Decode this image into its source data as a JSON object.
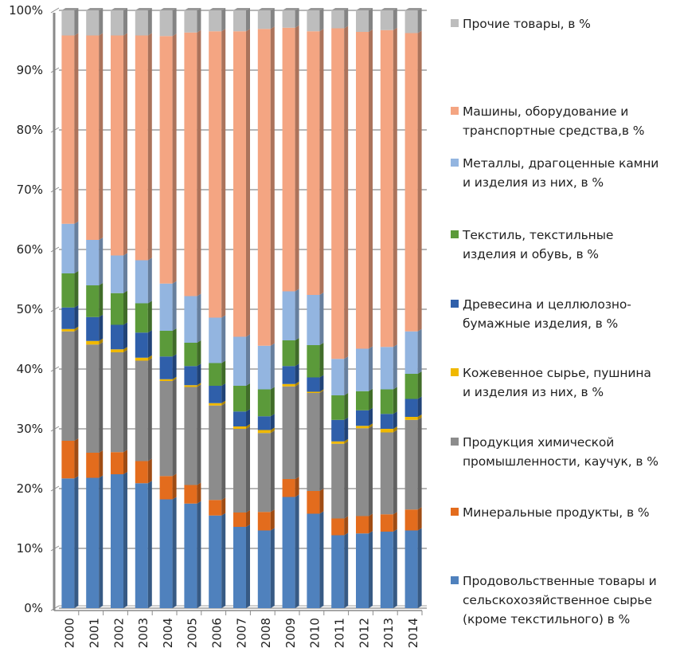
{
  "chart_data": {
    "type": "bar",
    "stacked": true,
    "percent_stacked": true,
    "title": "",
    "xlabel": "",
    "ylabel": "",
    "ylim": [
      0,
      100
    ],
    "yticks": [
      "0%",
      "10%",
      "20%",
      "30%",
      "40%",
      "50%",
      "60%",
      "70%",
      "80%",
      "90%",
      "100%"
    ],
    "grid": true,
    "legend_position": "right",
    "categories": [
      "2000",
      "2001",
      "2002",
      "2003",
      "2004",
      "2005",
      "2006",
      "2007",
      "2008",
      "2009",
      "2010",
      "2011",
      "2012",
      "2013",
      "2014"
    ],
    "series": [
      {
        "name": "Продовольственные товары и\nсельскохозяйственное сырье\n(кроме текстильного) в %",
        "color": "#4f81bd",
        "values": [
          21.7,
          21.8,
          22.4,
          20.9,
          18.2,
          17.5,
          15.5,
          13.6,
          13.0,
          18.6,
          15.8,
          12.2,
          12.5,
          12.8,
          13.0
        ]
      },
      {
        "name": "Минеральные продукты, в %",
        "color": "#e36c1d",
        "values": [
          6.3,
          4.2,
          3.7,
          3.7,
          3.9,
          3.1,
          2.6,
          2.4,
          3.1,
          3.0,
          3.8,
          2.8,
          2.9,
          2.9,
          3.5
        ]
      },
      {
        "name": "Продукция химической\nпромышленности, каучук, в %",
        "color": "#8c8c8c",
        "values": [
          18.3,
          18.1,
          16.7,
          16.8,
          15.9,
          16.4,
          15.8,
          14.0,
          13.2,
          15.5,
          16.4,
          12.5,
          14.7,
          13.7,
          15.0
        ]
      },
      {
        "name": "Кожевенное сырье, пушнина\nи изделия из них, в %",
        "color": "#f0b800",
        "values": [
          0.4,
          0.6,
          0.5,
          0.5,
          0.3,
          0.3,
          0.4,
          0.4,
          0.5,
          0.4,
          0.2,
          0.4,
          0.4,
          0.6,
          0.5
        ]
      },
      {
        "name": "Древесина и целлюлозно-\nбумажные изделия, в %",
        "color": "#2f5faa",
        "values": [
          3.6,
          4.0,
          4.1,
          4.2,
          3.8,
          3.2,
          2.9,
          2.5,
          2.3,
          3.0,
          2.4,
          3.6,
          2.6,
          2.5,
          3.0
        ]
      },
      {
        "name": "Текстиль, текстильные\nизделия и обувь, в %",
        "color": "#5b9a3a",
        "values": [
          5.7,
          5.3,
          5.3,
          4.9,
          4.3,
          3.9,
          3.8,
          4.3,
          4.5,
          4.3,
          5.4,
          4.1,
          3.2,
          4.1,
          4.2
        ]
      },
      {
        "name": "Металлы, драгоценные камни\nи изделия из них, в %",
        "color": "#93b5e0",
        "values": [
          8.3,
          7.6,
          6.3,
          7.2,
          7.9,
          7.8,
          7.6,
          8.2,
          7.3,
          8.2,
          8.4,
          6.1,
          7.1,
          7.1,
          7.1
        ]
      },
      {
        "name": "Машины, оборудование и\nтранспортные средства,в %",
        "color": "#f4a582",
        "values": [
          31.5,
          34.2,
          36.8,
          37.6,
          41.4,
          44.1,
          47.9,
          51.1,
          53.0,
          44.1,
          44.1,
          55.3,
          53.0,
          53.0,
          49.9
        ]
      },
      {
        "name": "Прочие товары, в %",
        "color": "#bdbdbd",
        "values": [
          4.2,
          4.2,
          4.2,
          4.2,
          4.3,
          3.7,
          3.5,
          3.5,
          3.1,
          2.9,
          3.5,
          3.0,
          3.6,
          3.3,
          3.8
        ]
      }
    ]
  },
  "legend": {
    "order": [
      8,
      7,
      6,
      5,
      4,
      3,
      2,
      1,
      0
    ]
  }
}
